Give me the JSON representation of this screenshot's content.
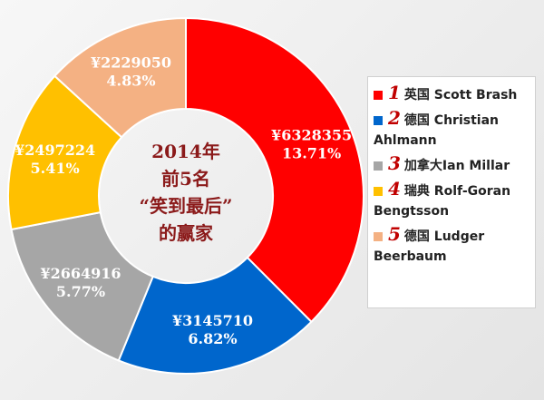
{
  "chart_data": {
    "type": "pie",
    "donut": true,
    "center_text": [
      "2014年",
      "前5名",
      "“笑到最后”",
      "的赢家"
    ],
    "ranks": [
      "1",
      "2",
      "3",
      "4",
      "5"
    ],
    "categories": [
      "英国 Scott Brash",
      "德国 Christian Ahlmann",
      "加拿大Ian Millar",
      "瑞典 Rolf-Goran Bengtsson",
      "德国 Ludger Beerbaum"
    ],
    "values": [
      6328355,
      3145710,
      2664916,
      2497224,
      2229050
    ],
    "value_labels": [
      "¥6328355",
      "¥3145710",
      "¥2664916",
      "¥2497224",
      "¥2229050"
    ],
    "percents": [
      13.71,
      6.82,
      5.77,
      5.41,
      4.83
    ],
    "percent_labels": [
      "13.71%",
      "6.82%",
      "5.77%",
      "5.41%",
      "4.83%"
    ],
    "colors": [
      "#ff0000",
      "#0066cc",
      "#a6a6a6",
      "#ffc000",
      "#f4b183"
    ]
  }
}
